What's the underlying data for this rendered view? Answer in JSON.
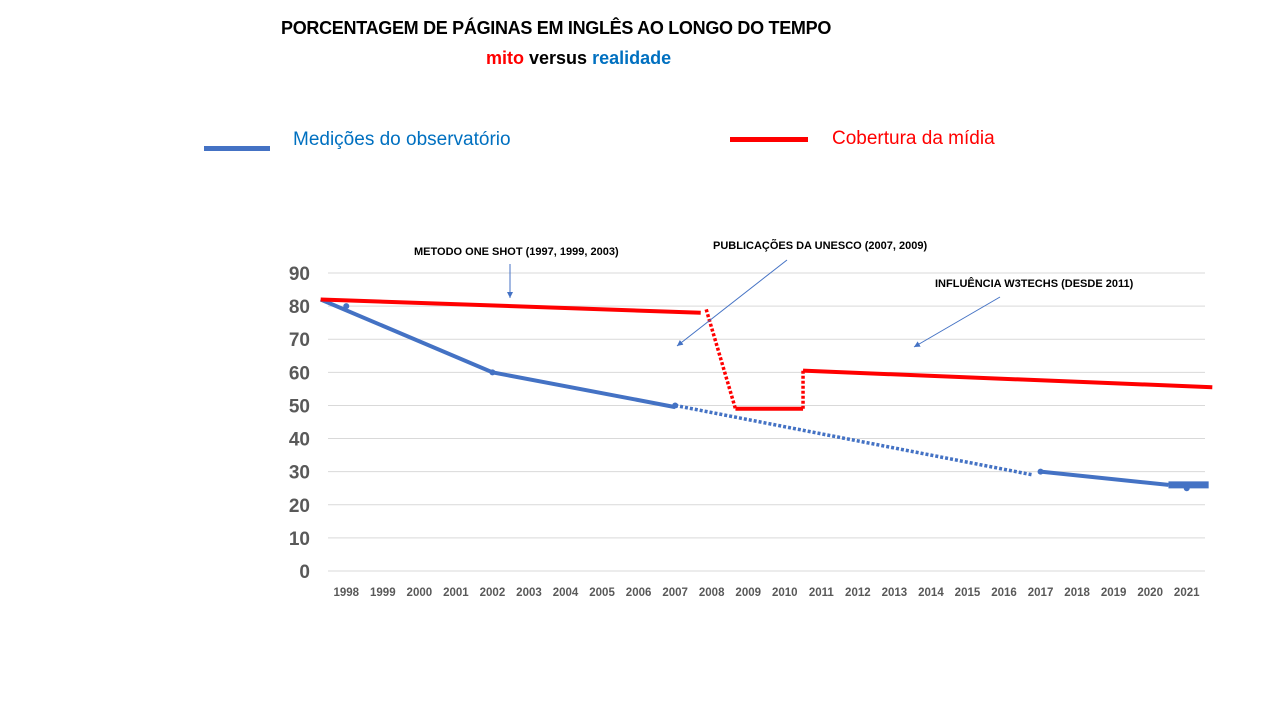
{
  "title": "PORCENTAGEM DE PÁGINAS EM INGLÊS AO LONGO DO TEMPO",
  "subtitle": {
    "part1": "mito",
    "part2": "versus",
    "part3": "realidade"
  },
  "colors": {
    "blue": "#4472C4",
    "red": "#FF0000",
    "legend_blue_text": "#0070C0"
  },
  "chart_data": {
    "type": "line",
    "title": "PORCENTAGEM DE PÁGINAS EM INGLÊS AO LONGO DO TEMPO",
    "categories": [
      "1998",
      "1999",
      "2000",
      "2001",
      "2002",
      "2003",
      "2004",
      "2005",
      "2006",
      "2007",
      "2008",
      "2009",
      "2010",
      "2011",
      "2012",
      "2013",
      "2014",
      "2015",
      "2016",
      "2017",
      "2018",
      "2019",
      "2020",
      "2021"
    ],
    "yticks": [
      0,
      10,
      20,
      30,
      40,
      50,
      60,
      70,
      80,
      90
    ],
    "ylim": [
      0,
      90
    ],
    "grid": true,
    "legend": [
      {
        "label": "Medições do observatório"
      },
      {
        "label": "Cobertura da mídia"
      }
    ],
    "series": [
      {
        "name": "Medições do observatório",
        "color": "#4472C4",
        "segments": [
          {
            "style": "solid",
            "points": [
              [
                1997.3,
                82
              ],
              [
                2002,
                60
              ],
              [
                2007,
                49.5
              ]
            ]
          },
          {
            "style": "dotted",
            "points": [
              [
                2007,
                50
              ],
              [
                2016.8,
                29
              ]
            ]
          },
          {
            "style": "solid",
            "points": [
              [
                2017,
                30
              ],
              [
                2020.5,
                26
              ]
            ]
          },
          {
            "style": "thick",
            "points": [
              [
                2020.5,
                26
              ],
              [
                2021.6,
                26
              ]
            ]
          }
        ],
        "markers": [
          [
            1998,
            80
          ],
          [
            2002,
            60
          ],
          [
            2007,
            50
          ],
          [
            2017,
            30
          ],
          [
            2021,
            25
          ]
        ]
      },
      {
        "name": "Cobertura da mídia",
        "color": "#FF0000",
        "segments": [
          {
            "style": "solid",
            "points": [
              [
                1997.3,
                82
              ],
              [
                2007.7,
                78
              ]
            ]
          },
          {
            "style": "dotted",
            "points": [
              [
                2007.85,
                79
              ],
              [
                2008.65,
                49
              ]
            ]
          },
          {
            "style": "solid",
            "points": [
              [
                2008.65,
                49
              ],
              [
                2010.5,
                49
              ]
            ]
          },
          {
            "style": "dotted",
            "points": [
              [
                2010.5,
                49
              ],
              [
                2010.5,
                60.5
              ]
            ]
          },
          {
            "style": "solid",
            "points": [
              [
                2010.5,
                60.5
              ],
              [
                2021.7,
                55.5
              ]
            ]
          }
        ]
      }
    ],
    "annotations": [
      {
        "text": "METODO ONE SHOT (1997, 1999, 2003)"
      },
      {
        "text": "PUBLICAÇÕES DA UNESCO (2007, 2009)"
      },
      {
        "text": "INFLUÊNCIA W3TECHS (DESDE 2011)"
      }
    ]
  }
}
